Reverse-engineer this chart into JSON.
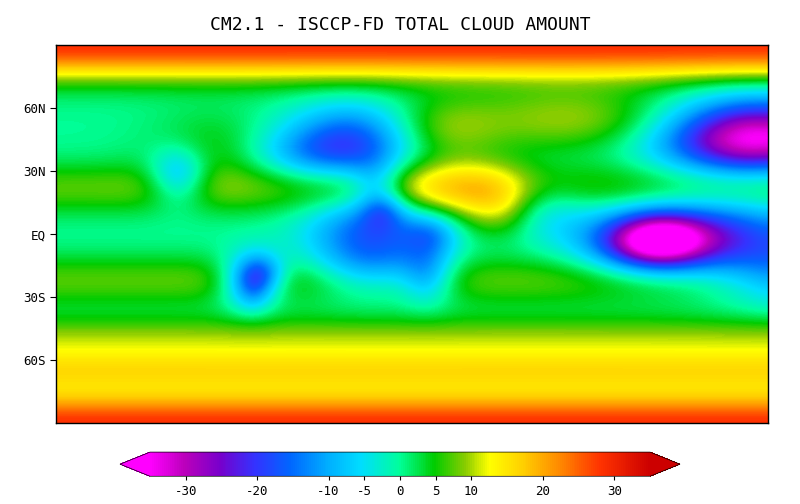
{
  "title": "CM2.1 - ISCCP-FD TOTAL CLOUD AMOUNT",
  "title_fontsize": 13,
  "colorbar_ticks": [
    -30,
    -20,
    -10,
    -5,
    0,
    5,
    10,
    20,
    30
  ],
  "vmin": -35,
  "vmax": 35,
  "lat_ticks": [
    -60,
    -30,
    0,
    30,
    60
  ],
  "lat_labels": [
    "60S",
    "30S",
    "EQ",
    "30N",
    "60N"
  ],
  "cmap_stops": [
    [
      0.0,
      "#FF00FF"
    ],
    [
      0.07,
      "#BB00BB"
    ],
    [
      0.14,
      "#7700CC"
    ],
    [
      0.21,
      "#3333FF"
    ],
    [
      0.28,
      "#0066FF"
    ],
    [
      0.35,
      "#00AAFF"
    ],
    [
      0.42,
      "#00DDFF"
    ],
    [
      0.5,
      "#00FF99"
    ],
    [
      0.57,
      "#00CC00"
    ],
    [
      0.63,
      "#88CC00"
    ],
    [
      0.68,
      "#FFFF00"
    ],
    [
      0.75,
      "#FFCC00"
    ],
    [
      0.82,
      "#FF8800"
    ],
    [
      0.9,
      "#FF3300"
    ],
    [
      1.0,
      "#CC0000"
    ]
  ]
}
